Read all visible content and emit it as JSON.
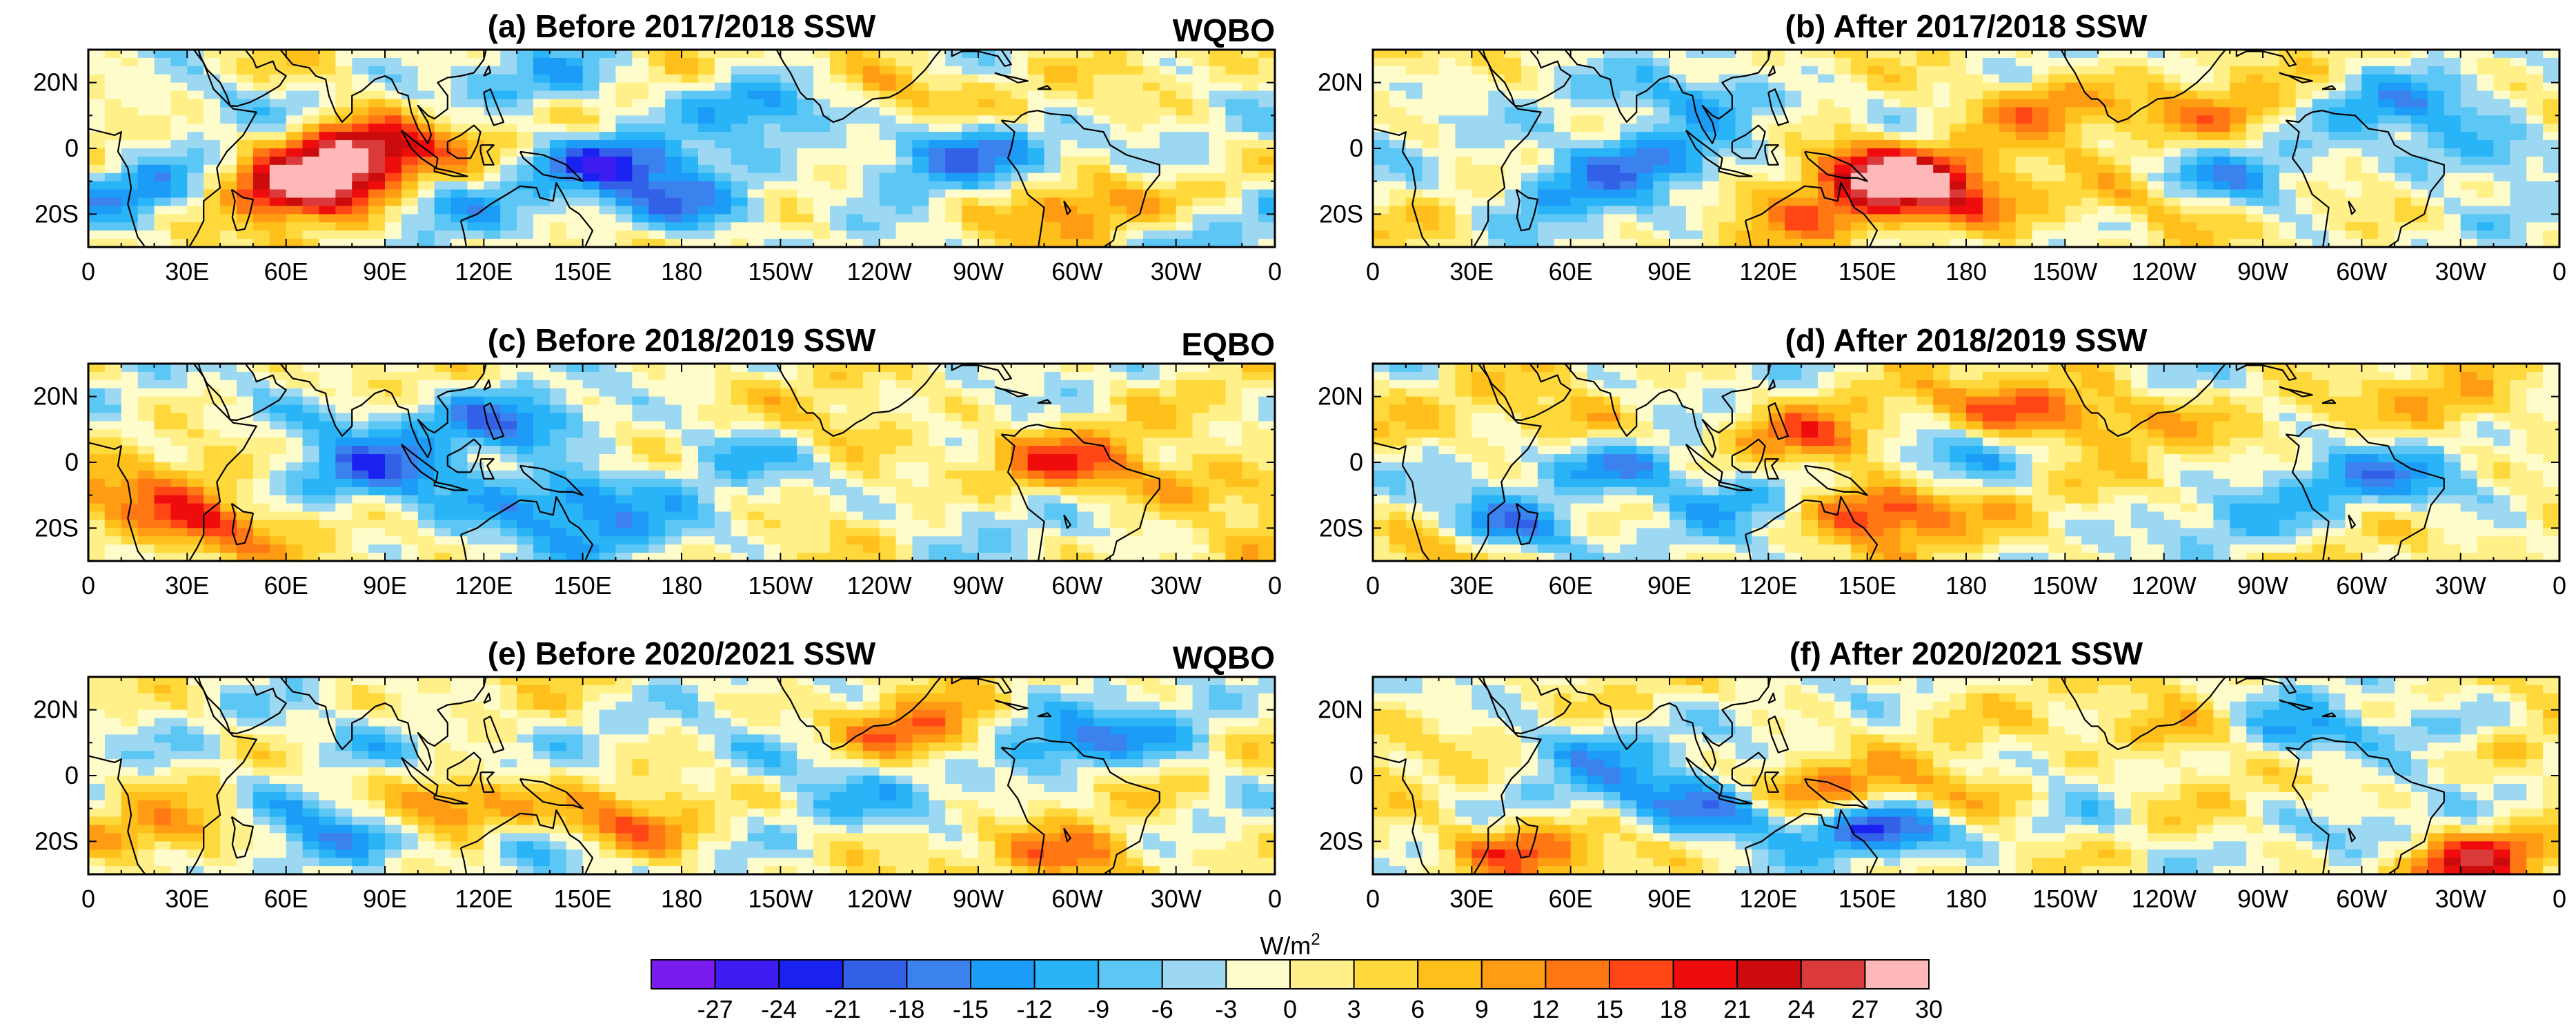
{
  "chart_data": {
    "type": "heatmap",
    "units_label": "W/m",
    "units_exponent": "2",
    "colorbar": {
      "colors": [
        "#7a1cf0",
        "#3c1cf0",
        "#1a22f0",
        "#3260e6",
        "#3c82ee",
        "#1c9cf6",
        "#28b4f6",
        "#5cc6f4",
        "#9cd8f2",
        "#fffccc",
        "#fff08a",
        "#ffd83c",
        "#ffc01c",
        "#ff9c14",
        "#ff7814",
        "#ff4614",
        "#ee0c0c",
        "#cc0c0c",
        "#da3a3a",
        "#ffb8b8"
      ],
      "tick_labels": [
        "-27",
        "-24",
        "-21",
        "-18",
        "-15",
        "-12",
        "-9",
        "-6",
        "-3",
        "0",
        "3",
        "6",
        "9",
        "12",
        "15",
        "18",
        "21",
        "24",
        "27",
        "30"
      ]
    },
    "x_tick_labels": [
      "0",
      "30E",
      "60E",
      "90E",
      "120E",
      "150E",
      "180",
      "150W",
      "120W",
      "90W",
      "60W",
      "30W",
      "0"
    ],
    "y_tick_labels": [
      "20N",
      "0",
      "20S"
    ],
    "panels": [
      {
        "title": "(a) Before 2017/2018 SSW",
        "qbo": "WQBO",
        "centers": [
          [
            62,
            -13,
            24
          ],
          [
            86,
            2,
            21
          ],
          [
            76,
            -6,
            16
          ],
          [
            158,
            -4,
            -20
          ],
          [
            184,
            -17,
            -17
          ],
          [
            205,
            14,
            -14
          ],
          [
            240,
            18,
            11
          ],
          [
            270,
            0,
            -16
          ],
          [
            292,
            -21,
            11
          ],
          [
            18,
            -13,
            -12
          ],
          [
            140,
            20,
            -10
          ],
          [
            107,
            -16,
            -9
          ],
          [
            310,
            -15,
            8
          ],
          [
            37,
            14,
            -8
          ],
          [
            246,
            -7,
            -9
          ],
          [
            330,
            -25,
            -10
          ]
        ]
      },
      {
        "title": "(b) After 2017/2018 SSW",
        "qbo": "",
        "centers": [
          [
            152,
            -6,
            22
          ],
          [
            165,
            -13,
            16
          ],
          [
            200,
            13,
            13
          ],
          [
            82,
            -2,
            -17
          ],
          [
            103,
            15,
            -14
          ],
          [
            57,
            -13,
            -13
          ],
          [
            263,
            -10,
            -13
          ],
          [
            310,
            12,
            -12
          ],
          [
            335,
            -2,
            -12
          ],
          [
            122,
            -20,
            9
          ],
          [
            232,
            -15,
            10
          ],
          [
            260,
            10,
            10
          ],
          [
            183,
            -19,
            8
          ]
        ]
      },
      {
        "title": "(c) Before 2018/2019 SSW",
        "qbo": "EQBO",
        "centers": [
          [
            35,
            -20,
            18
          ],
          [
            90,
            -3,
            -16
          ],
          [
            127,
            12,
            -14
          ],
          [
            146,
            -10,
            -15
          ],
          [
            70,
            13,
            -10
          ],
          [
            118,
            -17,
            -9
          ],
          [
            195,
            5,
            -9
          ],
          [
            297,
            0,
            13
          ],
          [
            335,
            -7,
            10
          ],
          [
            232,
            9,
            8
          ],
          [
            22,
            -10,
            9
          ],
          [
            165,
            -23,
            -8
          ],
          [
            265,
            -15,
            -6
          ]
        ]
      },
      {
        "title": "(d) After 2018/2019 SSW",
        "qbo": "",
        "centers": [
          [
            40,
            -20,
            -22
          ],
          [
            78,
            -2,
            -15
          ],
          [
            153,
            -15,
            22
          ],
          [
            133,
            7,
            12
          ],
          [
            195,
            16,
            15
          ],
          [
            224,
            13,
            10
          ],
          [
            113,
            -12,
            -10
          ],
          [
            296,
            -4,
            -10
          ],
          [
            330,
            17,
            10
          ],
          [
            22,
            -24,
            12
          ],
          [
            175,
            3,
            -8
          ],
          [
            328,
            -8,
            -8
          ],
          [
            262,
            -18,
            -6
          ],
          [
            60,
            12,
            9
          ]
        ]
      },
      {
        "title": "(e) Before 2020/2021 SSW",
        "qbo": "WQBO",
        "centers": [
          [
            110,
            -9,
            18
          ],
          [
            163,
            -17,
            14
          ],
          [
            255,
            12,
            16
          ],
          [
            301,
            -25,
            14
          ],
          [
            135,
            -22,
            -13
          ],
          [
            293,
            10,
            -13
          ],
          [
            326,
            12,
            -9
          ],
          [
            90,
            10,
            -10
          ],
          [
            60,
            -10,
            -9
          ],
          [
            210,
            5,
            -9
          ],
          [
            28,
            -17,
            10
          ],
          [
            78,
            -20,
            -8
          ],
          [
            250,
            -8,
            -7
          ]
        ]
      },
      {
        "title": "(f) After 2020/2021 SSW",
        "qbo": "",
        "centers": [
          [
            108,
            -11,
            -20
          ],
          [
            155,
            -15,
            -21
          ],
          [
            132,
            -6,
            16
          ],
          [
            180,
            -8,
            14
          ],
          [
            330,
            -25,
            21
          ],
          [
            282,
            12,
            -13
          ],
          [
            326,
            14,
            -12
          ],
          [
            44,
            -22,
            15
          ],
          [
            60,
            10,
            -9
          ],
          [
            245,
            13,
            11
          ],
          [
            313,
            -20,
            -8
          ],
          [
            345,
            10,
            10
          ],
          [
            80,
            -3,
            -8
          ],
          [
            210,
            -12,
            -7
          ]
        ]
      }
    ]
  }
}
